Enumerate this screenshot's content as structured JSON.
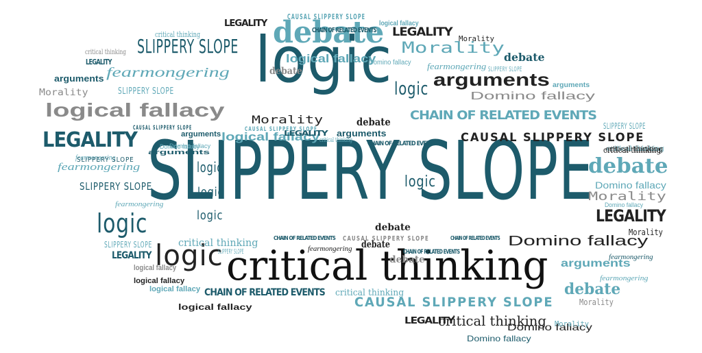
{
  "colors": {
    "teal": "#1d5b6b",
    "light_teal": "#5fa8b7",
    "gray": "#8a8a8a",
    "black": "#222222",
    "background": "#ffffff"
  },
  "words": [
    {
      "id": "w1",
      "text": "SLIPPERY SLOPE",
      "color": "#1d5b6b",
      "style": "thin"
    },
    {
      "id": "w2",
      "text": "logic",
      "color": "#1d5b6b",
      "style": "thin"
    },
    {
      "id": "w3",
      "text": "critical thinking",
      "color": "#111111",
      "style": "serif"
    },
    {
      "id": "w4",
      "text": "debate",
      "color": "#5fa8b7",
      "style": "serifb"
    },
    {
      "id": "w5",
      "text": "logical fallacy",
      "color": "#8a8a8a",
      "style": "sansb"
    },
    {
      "id": "w6",
      "text": "arguments",
      "color": "#222222",
      "style": "sansb"
    },
    {
      "id": "w7",
      "text": "CHAIN OF RELATED EVENTS",
      "color": "#5fa8b7",
      "style": "cond"
    },
    {
      "id": "w8",
      "text": "CAUSAL SLIPPERY SLOPE",
      "color": "#222222",
      "style": "wide"
    },
    {
      "id": "w9",
      "text": "LEGALITY",
      "color": "#1d5b6b",
      "style": "cond"
    },
    {
      "id": "w10",
      "text": "fearmongering",
      "color": "#5fa8b7",
      "style": "italic"
    },
    {
      "id": "w11",
      "text": "SLIPPERY SLOPE",
      "color": "#1d5b6b",
      "style": "thin"
    },
    {
      "id": "w12",
      "text": "Morality",
      "color": "#5fa8b7",
      "style": "mono"
    },
    {
      "id": "w13",
      "text": "Domino fallacy",
      "color": "#222222",
      "style": "sans"
    },
    {
      "id": "w14",
      "text": "debate",
      "color": "#5fa8b7",
      "style": "serifb"
    },
    {
      "id": "w15",
      "text": "LEGALITY",
      "color": "#222222",
      "style": "cond"
    },
    {
      "id": "w16",
      "text": "logic",
      "color": "#222222",
      "style": "thin"
    },
    {
      "id": "w17",
      "text": "logic",
      "color": "#1d5b6b",
      "style": "thin"
    },
    {
      "id": "w18",
      "text": "CAUSAL SLIPPERY SLOPE",
      "color": "#5fa8b7",
      "style": "wide"
    },
    {
      "id": "w19",
      "text": "critical thinking",
      "color": "#222222",
      "style": "serif"
    },
    {
      "id": "w20",
      "text": "LEGALITY",
      "color": "#222222",
      "style": "cond"
    },
    {
      "id": "w21",
      "text": "debate",
      "color": "#5fa8b7",
      "style": "serifb"
    },
    {
      "id": "w22",
      "text": "logical fallacy",
      "color": "#5fa8b7",
      "style": "sansb"
    },
    {
      "id": "w23",
      "text": "Domino fallacy",
      "color": "#8a8a8a",
      "style": "sans"
    },
    {
      "id": "w24",
      "text": "Morality",
      "color": "#222222",
      "style": "mono"
    },
    {
      "id": "w25",
      "text": "arguments",
      "color": "#5fa8b7",
      "style": "sansb"
    },
    {
      "id": "w26",
      "text": "CHAIN OF RELATED EVENTS",
      "color": "#1d5b6b",
      "style": "cond"
    },
    {
      "id": "w27",
      "text": "Domino fallacy",
      "color": "#222222",
      "style": "sans"
    },
    {
      "id": "w28",
      "text": "Morality",
      "color": "#8a8a8a",
      "style": "mono"
    },
    {
      "id": "w29",
      "text": "logical fallacy",
      "color": "#5fa8b7",
      "style": "sansb"
    },
    {
      "id": "w30",
      "text": "debate",
      "color": "#1d5b6b",
      "style": "serifb"
    },
    {
      "id": "w31",
      "text": "LEGALITY",
      "color": "#1d5b6b",
      "style": "cond"
    },
    {
      "id": "w32",
      "text": "SLIPPERY SLOPE",
      "color": "#1d5b6b",
      "style": "thin"
    },
    {
      "id": "w33",
      "text": "fearmongering",
      "color": "#5fa8b7",
      "style": "italic"
    },
    {
      "id": "w34",
      "text": "arguments",
      "color": "#1d5b6b",
      "style": "sansb"
    },
    {
      "id": "w35",
      "text": "logic",
      "color": "#1d5b6b",
      "style": "thin"
    },
    {
      "id": "w36",
      "text": "logic",
      "color": "#1d5b6b",
      "style": "thin"
    },
    {
      "id": "w37",
      "text": "logic",
      "color": "#1d5b6b",
      "style": "thin"
    },
    {
      "id": "w38",
      "text": "logic",
      "color": "#1d5b6b",
      "style": "thin"
    },
    {
      "id": "w39",
      "text": "logic",
      "color": "#1d5b6b",
      "style": "thin"
    },
    {
      "id": "w40",
      "text": "debate",
      "color": "#222222",
      "style": "serifb"
    },
    {
      "id": "w41",
      "text": "debate",
      "color": "#222222",
      "style": "serifb"
    },
    {
      "id": "w42",
      "text": "debate",
      "color": "#8a8a8a",
      "style": "serifb"
    },
    {
      "id": "w43",
      "text": "Morality",
      "color": "#222222",
      "style": "mono"
    },
    {
      "id": "w44",
      "text": "LEGALITY",
      "color": "#222222",
      "style": "cond"
    },
    {
      "id": "w45",
      "text": "CHAIN OF RELATED EVENTS",
      "color": "#1d5b6b",
      "style": "cond"
    },
    {
      "id": "w46",
      "text": "critical thinking",
      "color": "#5fa8b7",
      "style": "serif"
    },
    {
      "id": "w47",
      "text": "LEGALITY",
      "color": "#1d5b6b",
      "style": "cond"
    },
    {
      "id": "w48",
      "text": "logical fallacy",
      "color": "#5fa8b7",
      "style": "sansb"
    },
    {
      "id": "w49",
      "text": "logical fallacy",
      "color": "#8a8a8a",
      "style": "sansb"
    },
    {
      "id": "w50",
      "text": "logical fallacy",
      "color": "#5fa8b7",
      "style": "sansb"
    },
    {
      "id": "w51",
      "text": "logical fallacy",
      "color": "#222222",
      "style": "sansb"
    },
    {
      "id": "w52",
      "text": "Morality",
      "color": "#8a8a8a",
      "style": "mono"
    },
    {
      "id": "w53",
      "text": "Morality",
      "color": "#5fa8b7",
      "style": "mono"
    },
    {
      "id": "w54",
      "text": "critical thinking",
      "color": "#5fa8b7",
      "style": "serif"
    },
    {
      "id": "w55",
      "text": "critical thinking",
      "color": "#5fa8b7",
      "style": "serif"
    },
    {
      "id": "w56",
      "text": "critical thinking",
      "color": "#5fa8b7",
      "style": "serif"
    },
    {
      "id": "w57",
      "text": "critical thinking",
      "color": "#222222",
      "style": "serif"
    },
    {
      "id": "w58",
      "text": "fearmongering",
      "color": "#5fa8b7",
      "style": "italic"
    },
    {
      "id": "w59",
      "text": "fearmongering",
      "color": "#222222",
      "style": "italic"
    },
    {
      "id": "w60",
      "text": "fearmongering",
      "color": "#5fa8b7",
      "style": "italic"
    },
    {
      "id": "w61",
      "text": "fearmongering",
      "color": "#5fa8b7",
      "style": "italic"
    },
    {
      "id": "w62",
      "text": "fearmongering",
      "color": "#1d5b6b",
      "style": "italic"
    },
    {
      "id": "w63",
      "text": "SLIPPERY SLOPE",
      "color": "#5fa8b7",
      "style": "thin"
    },
    {
      "id": "w64",
      "text": "SLIPPERY SLOPE",
      "color": "#5fa8b7",
      "style": "thin"
    },
    {
      "id": "w65",
      "text": "SLIPPERY SLOPE",
      "color": "#5fa8b7",
      "style": "thin"
    },
    {
      "id": "w66",
      "text": "SLIPPERY SLOPE",
      "color": "#5fa8b7",
      "style": "thin"
    },
    {
      "id": "w67",
      "text": "SLIPPERY SLOPE",
      "color": "#5fa8b7",
      "style": "thin"
    },
    {
      "id": "w68",
      "text": "arguments",
      "color": "#1d5b6b",
      "style": "sansb"
    },
    {
      "id": "w69",
      "text": "arguments",
      "color": "#1d5b6b",
      "style": "sansb"
    },
    {
      "id": "w70",
      "text": "arguments",
      "color": "#5fa8b7",
      "style": "sansb"
    },
    {
      "id": "w71",
      "text": "Domino fallacy",
      "color": "#5fa8b7",
      "style": "sans"
    },
    {
      "id": "w72",
      "text": "Domino fallacy",
      "color": "#5fa8b7",
      "style": "sans"
    },
    {
      "id": "w73",
      "text": "Domino fallacy",
      "color": "#1d5b6b",
      "style": "sans"
    },
    {
      "id": "w74",
      "text": "Domino fallacy",
      "color": "#5fa8b7",
      "style": "sans"
    },
    {
      "id": "w75",
      "text": "Domino fallacy",
      "color": "#5fa8b7",
      "style": "sans"
    },
    {
      "id": "w76",
      "text": "CAUSAL SLIPPERY SLOPE",
      "color": "#5fa8b7",
      "style": "wide"
    },
    {
      "id": "w77",
      "text": "CAUSAL SLIPPERY SLOPE",
      "color": "#1d5b6b",
      "style": "wide"
    },
    {
      "id": "w78",
      "text": "CAUSAL SLIPPERY SLOPE",
      "color": "#5fa8b7",
      "style": "wide"
    },
    {
      "id": "w79",
      "text": "CAUSAL SLIPPERY SLOPE",
      "color": "#8a8a8a",
      "style": "wide"
    },
    {
      "id": "w80",
      "text": "CHAIN OF RELATED EVENTS",
      "color": "#1d5b6b",
      "style": "cond"
    },
    {
      "id": "w81",
      "text": "CHAIN OF RELATED EVENTS",
      "color": "#1d5b6b",
      "style": "cond"
    },
    {
      "id": "w82",
      "text": "CHAIN OF RELATED EVENTS",
      "color": "#1d5b6b",
      "style": "cond"
    },
    {
      "id": "w83",
      "text": "CHAIN OF RELATED EVENTS",
      "color": "#1d5b6b",
      "style": "cond"
    },
    {
      "id": "w84",
      "text": "critical thinking",
      "color": "#5fa8b7",
      "style": "serif"
    },
    {
      "id": "w85",
      "text": "LEGALITY",
      "color": "#1d5b6b",
      "style": "cond"
    },
    {
      "id": "w86",
      "text": "LEGALITY",
      "color": "#222222",
      "style": "cond"
    },
    {
      "id": "w87",
      "text": "debate",
      "color": "#8a8a8a",
      "style": "serifb"
    },
    {
      "id": "w88",
      "text": "Morality",
      "color": "#8a8a8a",
      "style": "mono"
    },
    {
      "id": "w89",
      "text": "Morality",
      "color": "#222222",
      "style": "mono"
    },
    {
      "id": "w90",
      "text": "arguments",
      "color": "#1d5b6b",
      "style": "sansb"
    },
    {
      "id": "w91",
      "text": "fearmongering",
      "color": "#5fa8b7",
      "style": "italic"
    },
    {
      "id": "w92",
      "text": "critical thinking",
      "color": "#8a8a8a",
      "style": "serif"
    },
    {
      "id": "w93",
      "text": "SLIPPERY SLOPE",
      "color": "#1d5b6b",
      "style": "thin"
    },
    {
      "id": "w94",
      "text": "logical fallacy",
      "color": "#222222",
      "style": "sansb"
    },
    {
      "id": "w95",
      "text": "Domino fallacy",
      "color": "#5fa8b7",
      "style": "sans"
    },
    {
      "id": "w96",
      "text": "critical thinking",
      "color": "#222222",
      "style": "serif"
    },
    {
      "id": "w97",
      "text": "debate",
      "color": "#222222",
      "style": "serifb"
    }
  ]
}
